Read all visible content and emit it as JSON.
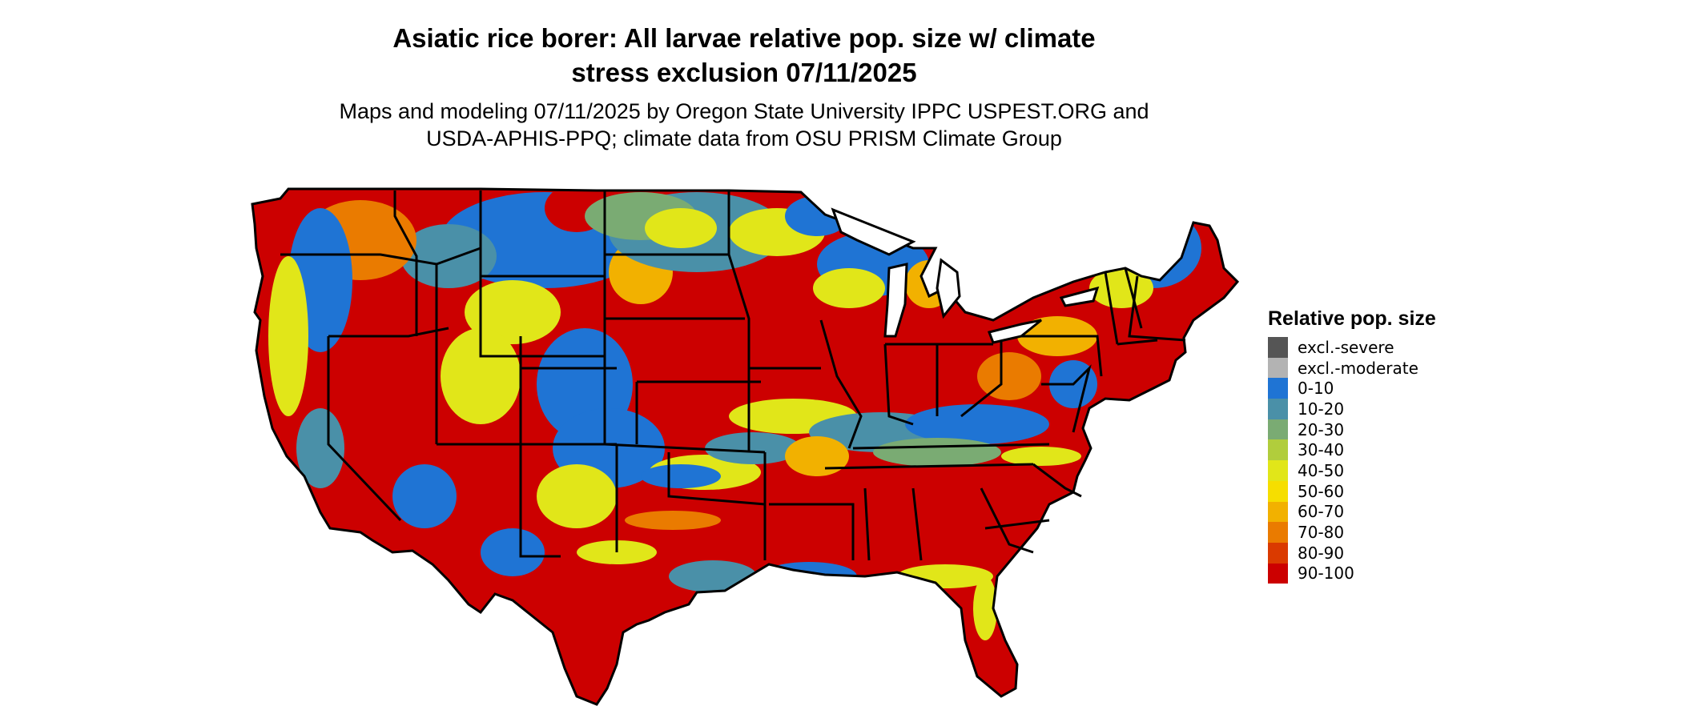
{
  "title": {
    "line1": "Asiatic rice borer: All larvae relative pop. size w/ climate",
    "line2": "stress exclusion 07/11/2025"
  },
  "subtitle": {
    "line1": "Maps and modeling 07/11/2025 by Oregon State University IPPC USPEST.ORG and",
    "line2": "USDA-APHIS-PPQ; climate data from OSU PRISM Climate Group"
  },
  "legend": {
    "title": "Relative pop. size",
    "items": [
      {
        "label": "excl.-severe",
        "color": "#555555"
      },
      {
        "label": "excl.-moderate",
        "color": "#b3b3b3"
      },
      {
        "label": "0-10",
        "color": "#1f74d4"
      },
      {
        "label": "10-20",
        "color": "#4a90a8"
      },
      {
        "label": "20-30",
        "color": "#7aab73"
      },
      {
        "label": "30-40",
        "color": "#b1cd3c"
      },
      {
        "label": "40-50",
        "color": "#e1e619"
      },
      {
        "label": "50-60",
        "color": "#f6de00"
      },
      {
        "label": "60-70",
        "color": "#f2b100"
      },
      {
        "label": "70-80",
        "color": "#ea7b00"
      },
      {
        "label": "80-90",
        "color": "#da3a00"
      },
      {
        "label": "90-100",
        "color": "#cc0000"
      }
    ]
  },
  "map": {
    "region": "contiguous United States",
    "colors": {
      "red": "#cc0000",
      "orange": "#ea7b00",
      "yellow": "#e1e619",
      "blue": "#1f74d4",
      "teal": "#4a90a8",
      "green": "#7aab73",
      "border": "#000000"
    }
  }
}
